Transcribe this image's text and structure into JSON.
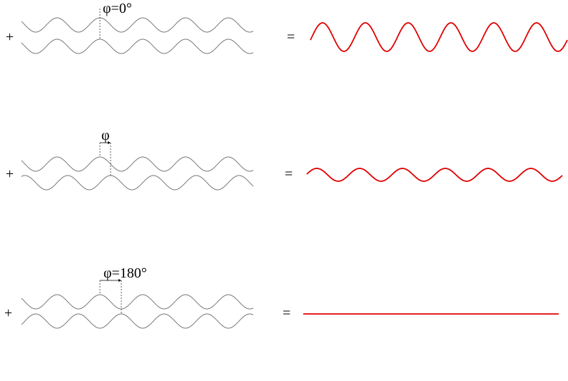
{
  "rows": [
    {
      "label": "φ=0°",
      "plus": "+",
      "equals": "=",
      "phase_deg": 0,
      "result_amplitude": "double"
    },
    {
      "label": "φ",
      "plus": "+",
      "equals": "=",
      "phase_deg": 90,
      "result_amplitude": "partial"
    },
    {
      "label": "φ=180°",
      "plus": "+",
      "equals": "=",
      "phase_deg": 180,
      "result_amplitude": "zero"
    }
  ],
  "colors": {
    "input_wave": "#777777",
    "result_wave": "#e00000",
    "text": "#000000"
  }
}
